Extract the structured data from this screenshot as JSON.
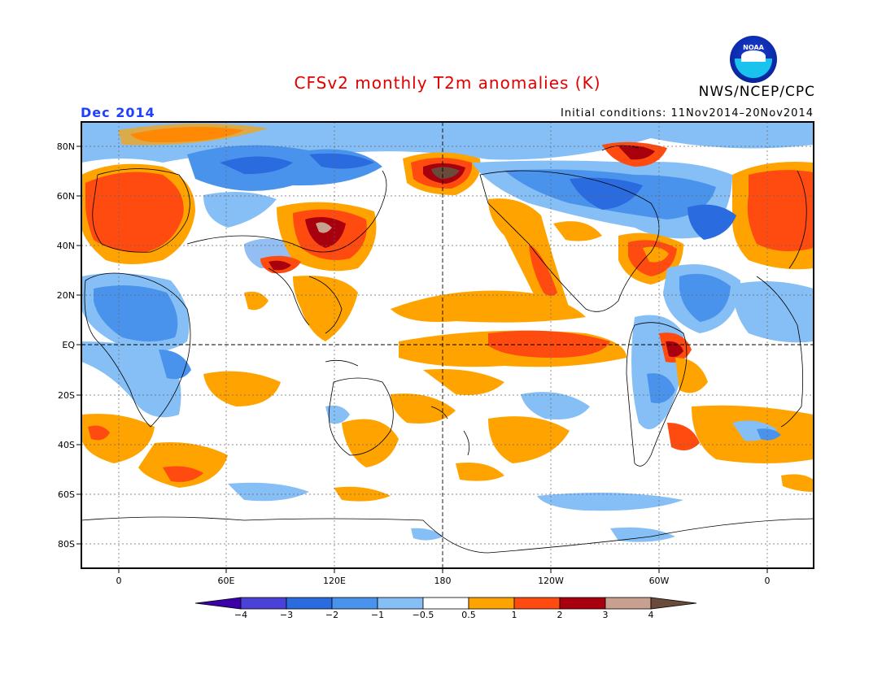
{
  "title": "CFSv2 monthly T2m anomalies (K)",
  "month": "Dec 2014",
  "initial_conditions": "Initial conditions: 11Nov2014–20Nov2014",
  "agency": "NWS/NCEP/CPC",
  "logo_text": "NOAA",
  "lat_labels": [
    "80N",
    "60N",
    "40N",
    "20N",
    "EQ",
    "20S",
    "40S",
    "60S",
    "80S"
  ],
  "lon_labels": [
    "0",
    "60E",
    "120E",
    "180",
    "120W",
    "60W",
    "0"
  ],
  "colorbar": {
    "labels": [
      "−4",
      "−3",
      "−2",
      "−1",
      "−0.5",
      "0.5",
      "1",
      "2",
      "3",
      "4"
    ],
    "colors": [
      "#3c00a8",
      "#4a41d8",
      "#2a6be0",
      "#4a93ec",
      "#86bff5",
      "#ffffff",
      "#ffa300",
      "#ff4a10",
      "#a8000c",
      "#c8a090",
      "#6a4a3a"
    ]
  },
  "colors": {
    "ocean_white": "#ffffff",
    "frame": "#000000",
    "title": "#e00000",
    "month": "#2040ff"
  }
}
